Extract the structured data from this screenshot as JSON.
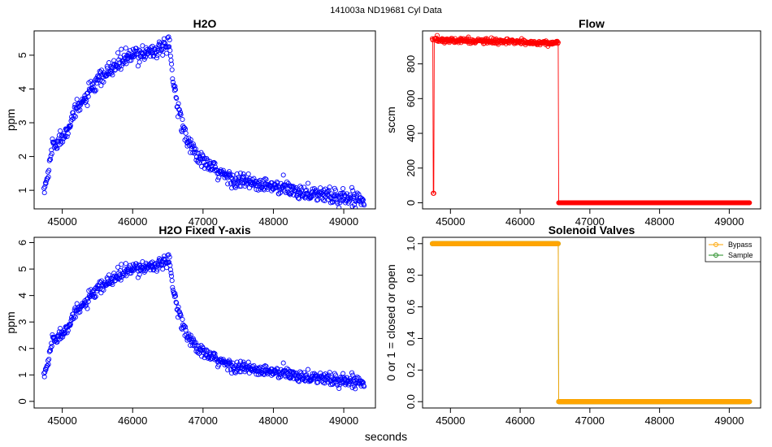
{
  "figure": {
    "suptitle": "141003a   ND19681   Cyl Data",
    "xlabel": "seconds"
  },
  "colors": {
    "h2o": "#0000ff",
    "flow": "#ff0000",
    "bypass": "#ffa500",
    "sample": "#228b22"
  },
  "chart_data": [
    {
      "id": "h2o",
      "type": "scatter",
      "title": "H2O",
      "xlabel": "",
      "ylabel": "ppm",
      "xlim": [
        44600,
        49450
      ],
      "ylim": [
        0.45,
        5.72
      ],
      "xticks": [
        45000,
        46000,
        47000,
        48000,
        49000
      ],
      "yticks": [
        1,
        2,
        3,
        4,
        5
      ],
      "ytick_labels": [
        "1",
        "2",
        "3",
        "4",
        "5"
      ],
      "x_range": [
        44740,
        49290
      ],
      "x_step": 7,
      "profile": [
        [
          44740,
          0.95
        ],
        [
          44800,
          1.5
        ],
        [
          44860,
          2.35
        ],
        [
          45000,
          2.55
        ],
        [
          45150,
          3.2
        ],
        [
          45300,
          3.65
        ],
        [
          45500,
          4.2
        ],
        [
          45700,
          4.6
        ],
        [
          45900,
          4.9
        ],
        [
          46100,
          5.05
        ],
        [
          46300,
          5.15
        ],
        [
          46530,
          5.25
        ],
        [
          46560,
          4.5
        ],
        [
          46600,
          3.9
        ],
        [
          46700,
          3.0
        ],
        [
          46800,
          2.4
        ],
        [
          46900,
          2.05
        ],
        [
          47000,
          1.85
        ],
        [
          47200,
          1.55
        ],
        [
          47400,
          1.35
        ],
        [
          47600,
          1.25
        ],
        [
          47800,
          1.15
        ],
        [
          48000,
          1.1
        ],
        [
          48300,
          1.0
        ],
        [
          48600,
          0.9
        ],
        [
          48900,
          0.8
        ],
        [
          49290,
          0.75
        ]
      ],
      "noise": 0.12
    },
    {
      "id": "flow",
      "type": "scatter",
      "title": "Flow",
      "xlabel": "",
      "ylabel": "sccm",
      "xlim": [
        44600,
        49450
      ],
      "ylim": [
        -35,
        990
      ],
      "xticks": [
        45000,
        46000,
        47000,
        48000,
        49000
      ],
      "yticks": [
        0,
        200,
        400,
        600,
        800
      ],
      "ytick_labels": [
        "0",
        "200",
        "400",
        "600",
        "800"
      ],
      "x_range": [
        44740,
        49290
      ],
      "x_step": 7,
      "spike": {
        "x": 44760,
        "y": 55
      },
      "on_until": 46550,
      "profile": [
        [
          44740,
          940
        ],
        [
          45000,
          935
        ],
        [
          45500,
          930
        ],
        [
          46000,
          925
        ],
        [
          46500,
          920
        ]
      ],
      "noise": 7,
      "off_value": 0
    },
    {
      "id": "h2o_fixed",
      "type": "scatter",
      "title": "H2O Fixed Y-axis",
      "xlabel": "",
      "ylabel": "ppm",
      "xlim": [
        44600,
        49450
      ],
      "ylim": [
        -0.25,
        6.2
      ],
      "xticks": [
        45000,
        46000,
        47000,
        48000,
        49000
      ],
      "yticks": [
        0,
        1,
        2,
        3,
        4,
        5,
        6
      ],
      "ytick_labels": [
        "0",
        "1",
        "2",
        "3",
        "4",
        "5",
        "6"
      ],
      "same_as": "h2o"
    },
    {
      "id": "valves",
      "type": "line",
      "title": "Solenoid Valves",
      "xlabel": "",
      "ylabel": "0 or 1 = closed or open",
      "xlim": [
        44600,
        49450
      ],
      "ylim": [
        -0.04,
        1.04
      ],
      "xticks": [
        45000,
        46000,
        47000,
        48000,
        49000
      ],
      "yticks": [
        0,
        0.2,
        0.4,
        0.6,
        0.8,
        1.0
      ],
      "ytick_labels": [
        "0.0",
        "0.2",
        "0.4",
        "0.6",
        "0.8",
        "1.0"
      ],
      "x_range": [
        44740,
        49290
      ],
      "x_step": 7,
      "switch_x": 46550,
      "series": [
        {
          "name": "Bypass",
          "before": 1,
          "after": 0
        },
        {
          "name": "Sample",
          "before": 1,
          "after": 0
        }
      ],
      "legend": [
        "Bypass",
        "Sample"
      ],
      "legend_position": "top-right"
    }
  ]
}
